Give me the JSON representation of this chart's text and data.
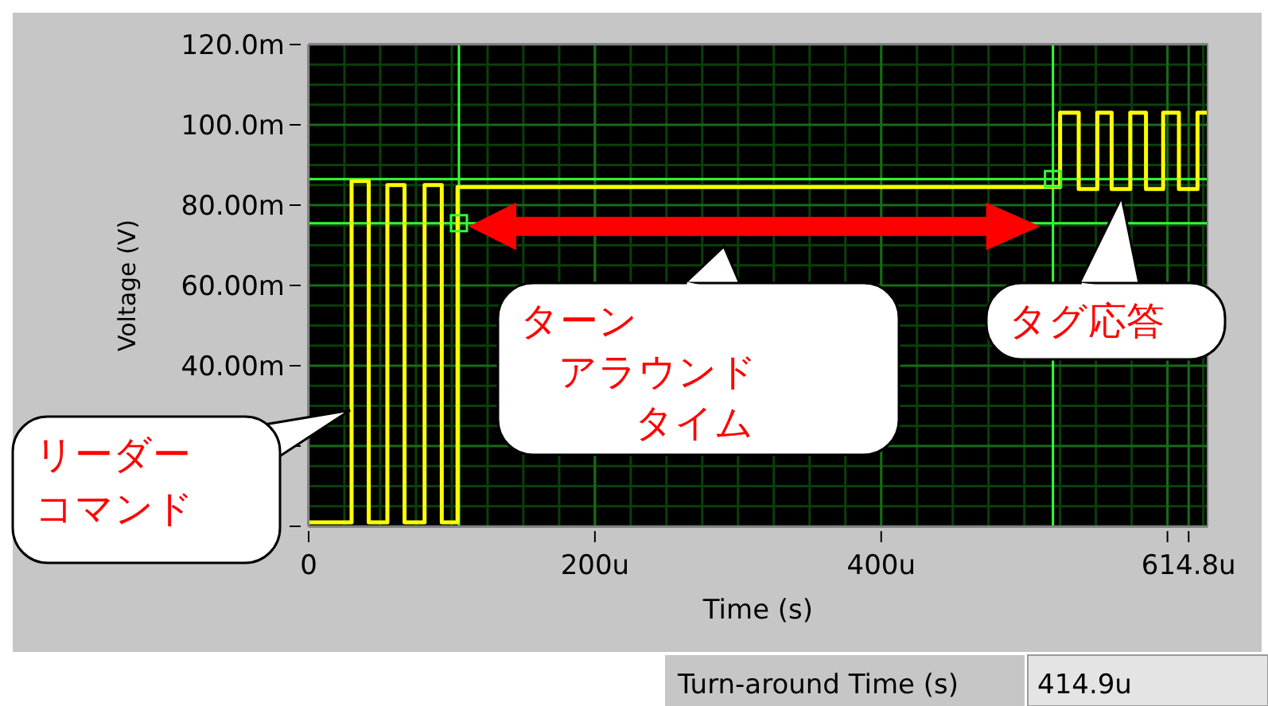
{
  "chart_data": {
    "type": "line",
    "xlabel": "Time (s)",
    "ylabel": "Voltage (V)",
    "xlim": [
      0,
      628
    ],
    "xticks": [
      {
        "value": 0,
        "label": "0"
      },
      {
        "value": 200,
        "label": "200u"
      },
      {
        "value": 400,
        "label": "400u"
      },
      {
        "value": 600,
        "label": null
      },
      {
        "value": 614.8,
        "label": "614.8u"
      }
    ],
    "ylim": [
      0,
      120
    ],
    "yticks": [
      {
        "value": 0,
        "label": null
      },
      {
        "value": 20,
        "label": null
      },
      {
        "value": 40,
        "label": "40.00m"
      },
      {
        "value": 60,
        "label": "60.00m"
      },
      {
        "value": 80,
        "label": "80.00m"
      },
      {
        "value": 100,
        "label": "100.0m"
      },
      {
        "value": 120,
        "label": "120.0m"
      }
    ],
    "grid": true,
    "line_style": "solid",
    "series": [
      {
        "color": "#ffff00",
        "x": [
          0,
          30,
          30,
          42,
          42,
          55,
          55,
          67,
          67,
          81,
          81,
          93,
          93,
          104,
          104,
          525,
          525,
          538,
          538,
          551,
          551,
          561,
          561,
          574,
          574,
          585,
          585,
          597,
          597,
          608,
          608,
          621,
          621,
          628
        ],
        "values": [
          1,
          1,
          86,
          86,
          1,
          1,
          85,
          85,
          1,
          1,
          85,
          85,
          1,
          1,
          84.5,
          84.5,
          103,
          103,
          84,
          84,
          103,
          103,
          84,
          84,
          103,
          103,
          84,
          84,
          103,
          103,
          84,
          84,
          103,
          103
        ]
      }
    ],
    "ref_lines": [
      {
        "axis": "x",
        "value": 105,
        "color": "#33ff33"
      },
      {
        "axis": "x",
        "value": 520,
        "color": "#33ff33"
      },
      {
        "axis": "y",
        "value": 86.5,
        "color": "#33ff33"
      },
      {
        "axis": "y",
        "value": 75.5,
        "color": "#33ff33"
      }
    ],
    "annotations": [
      "リーダーコマンド",
      "ターンアラウンドタイム",
      "タグ応答",
      "Turn-around Time (s)",
      "414.9u"
    ]
  }
}
